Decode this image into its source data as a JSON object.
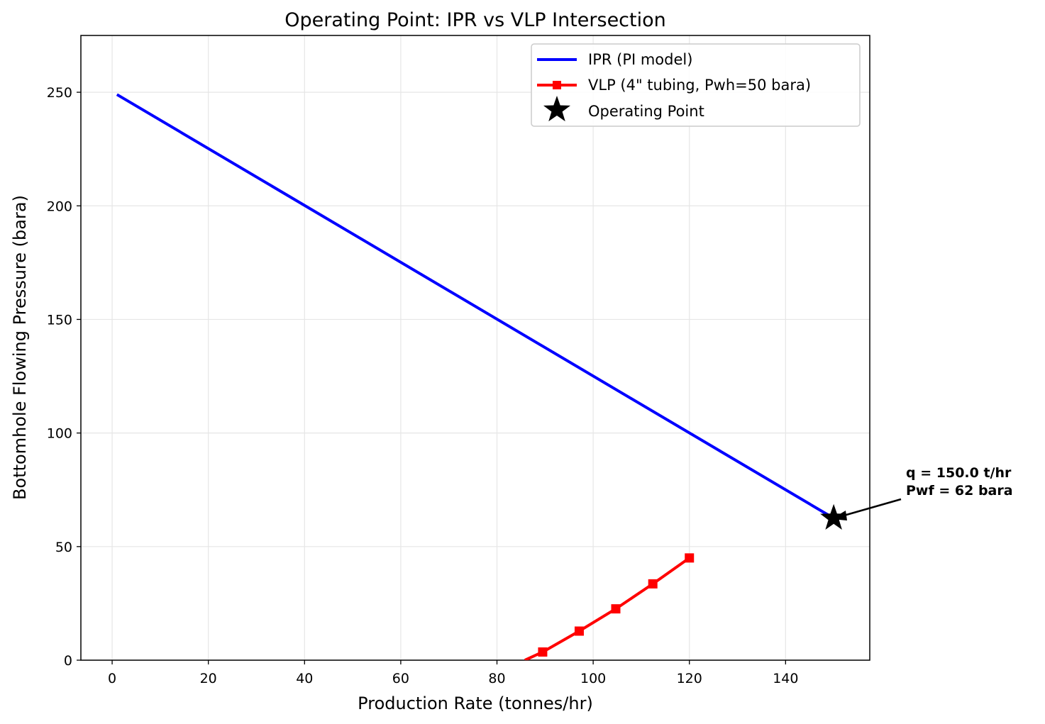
{
  "chart_data": {
    "type": "line",
    "title": "Operating Point: IPR vs VLP Intersection",
    "xlabel": "Production Rate (tonnes/hr)",
    "ylabel": "Bottomhole Flowing Pressure (bara)",
    "xlim": [
      -6.5,
      157.5
    ],
    "ylim": [
      0,
      275
    ],
    "xticks": [
      0,
      20,
      40,
      60,
      80,
      100,
      120,
      140
    ],
    "yticks": [
      0,
      50,
      100,
      150,
      200,
      250
    ],
    "grid": true,
    "legend_position": "top-right",
    "series": [
      {
        "name": "IPR (PI model)",
        "color": "#0000ff",
        "marker": "none",
        "x": [
          1,
          150
        ],
        "y": [
          249,
          62.5
        ]
      },
      {
        "name": "VLP (4\" tubing, Pwh=50 bara)",
        "color": "#ff0000",
        "marker": "square",
        "x": [
          85.8,
          89.5,
          97.1,
          104.7,
          112.4,
          120.0
        ],
        "y": [
          0,
          3.6,
          12.8,
          22.6,
          33.6,
          45.0
        ],
        "marker_x": [
          89.5,
          97.1,
          104.7,
          112.4,
          120.0
        ],
        "marker_y": [
          3.6,
          12.8,
          22.6,
          33.6,
          45.0
        ]
      }
    ],
    "operating_point": {
      "name": "Operating Point",
      "color": "#000000",
      "marker": "star",
      "x": 150.0,
      "y": 62.5
    },
    "annotation": {
      "line1": "q = 150.0 t/hr",
      "line2": "Pwf = 62 bara"
    }
  }
}
